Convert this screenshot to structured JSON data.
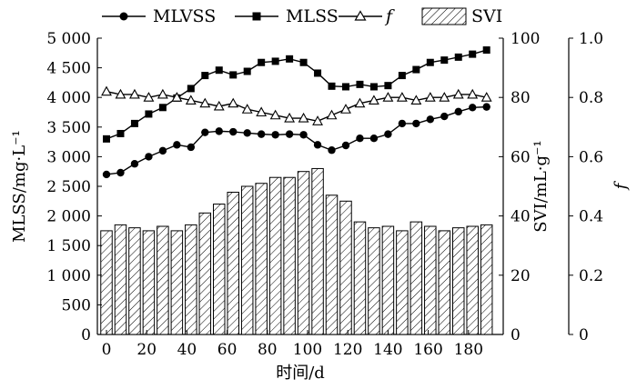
{
  "chart_data": {
    "type": "bar+line",
    "xlabel": "时间/d",
    "ylabel_left": "MLSS/mg·L⁻¹",
    "ylabel_right1": "SVI/mL·g⁻¹",
    "ylabel_right2": "f",
    "xlim": [
      0,
      190
    ],
    "ylim_left": [
      0,
      5000
    ],
    "ylim_right1": [
      0,
      100
    ],
    "ylim_right2": [
      0,
      1.0
    ],
    "x_ticks": [
      0,
      20,
      40,
      60,
      80,
      100,
      120,
      140,
      160,
      180
    ],
    "x_tick_labels": [
      "0",
      "20",
      "40",
      "60",
      "80",
      "100",
      "120",
      "140",
      "160",
      "180"
    ],
    "y_left_ticks": [
      0,
      500,
      1000,
      1500,
      2000,
      2500,
      3000,
      3500,
      4000,
      4500,
      5000
    ],
    "y_left_tick_labels": [
      "0",
      "500",
      "1 000",
      "1 500",
      "2 000",
      "2 500",
      "3 000",
      "3 500",
      "4 000",
      "4 500",
      "5 000"
    ],
    "y_right1_ticks": [
      0,
      20,
      40,
      60,
      80,
      100
    ],
    "y_right1_tick_labels": [
      "0",
      "20",
      "40",
      "60",
      "80",
      "100"
    ],
    "y_right2_ticks": [
      0,
      0.2,
      0.4,
      0.6,
      0.8,
      1.0
    ],
    "y_right2_tick_labels": [
      "0",
      "0.2",
      "0.4",
      "0.6",
      "0.8",
      "1.0"
    ],
    "legend": {
      "placement": "top",
      "entries": [
        "MLVSS",
        "MLSS",
        "f",
        "SVI"
      ]
    },
    "series": [
      {
        "name": "MLVSS",
        "axis": "left",
        "kind": "line",
        "marker": "circle",
        "x": [
          0,
          7,
          14,
          21,
          28,
          35,
          42,
          49,
          56,
          63,
          70,
          77,
          84,
          91,
          98,
          105,
          112,
          119,
          126,
          133,
          140,
          147,
          154,
          161,
          168,
          175,
          182,
          189
        ],
        "values": [
          2700,
          2730,
          2880,
          3000,
          3100,
          3200,
          3160,
          3410,
          3430,
          3420,
          3400,
          3380,
          3370,
          3380,
          3370,
          3200,
          3110,
          3190,
          3310,
          3310,
          3380,
          3560,
          3560,
          3630,
          3680,
          3760,
          3830,
          3840
        ]
      },
      {
        "name": "MLSS",
        "axis": "left",
        "kind": "line",
        "marker": "square",
        "x": [
          0,
          7,
          14,
          21,
          28,
          35,
          42,
          49,
          56,
          63,
          70,
          77,
          84,
          91,
          98,
          105,
          112,
          119,
          126,
          133,
          140,
          147,
          154,
          161,
          168,
          175,
          182,
          189
        ],
        "values": [
          3300,
          3390,
          3560,
          3720,
          3830,
          3990,
          4150,
          4370,
          4460,
          4380,
          4440,
          4590,
          4610,
          4650,
          4590,
          4410,
          4190,
          4180,
          4220,
          4180,
          4200,
          4370,
          4470,
          4590,
          4630,
          4680,
          4730,
          4800
        ]
      },
      {
        "name": "f",
        "axis": "right2",
        "kind": "line",
        "marker": "triangle-open",
        "x": [
          0,
          7,
          14,
          21,
          28,
          35,
          42,
          49,
          56,
          63,
          70,
          77,
          84,
          91,
          98,
          105,
          112,
          119,
          126,
          133,
          140,
          147,
          154,
          161,
          168,
          175,
          182,
          189
        ],
        "values": [
          0.82,
          0.81,
          0.81,
          0.8,
          0.81,
          0.8,
          0.79,
          0.78,
          0.77,
          0.78,
          0.76,
          0.75,
          0.74,
          0.73,
          0.73,
          0.72,
          0.74,
          0.76,
          0.78,
          0.79,
          0.8,
          0.8,
          0.79,
          0.8,
          0.8,
          0.81,
          0.81,
          0.8
        ]
      },
      {
        "name": "SVI",
        "axis": "right1",
        "kind": "bar",
        "pattern": "hatch",
        "x": [
          0,
          7,
          14,
          21,
          28,
          35,
          42,
          49,
          56,
          63,
          70,
          77,
          84,
          91,
          98,
          105,
          112,
          119,
          126,
          133,
          140,
          147,
          154,
          161,
          168,
          175,
          182,
          189
        ],
        "values": [
          35,
          37,
          36,
          35,
          36.5,
          35,
          37,
          41,
          44,
          48,
          50,
          51,
          53,
          53,
          55,
          56,
          47,
          45,
          38,
          36,
          36.5,
          35,
          38,
          36.5,
          35,
          36,
          36.5,
          37
        ]
      }
    ]
  }
}
